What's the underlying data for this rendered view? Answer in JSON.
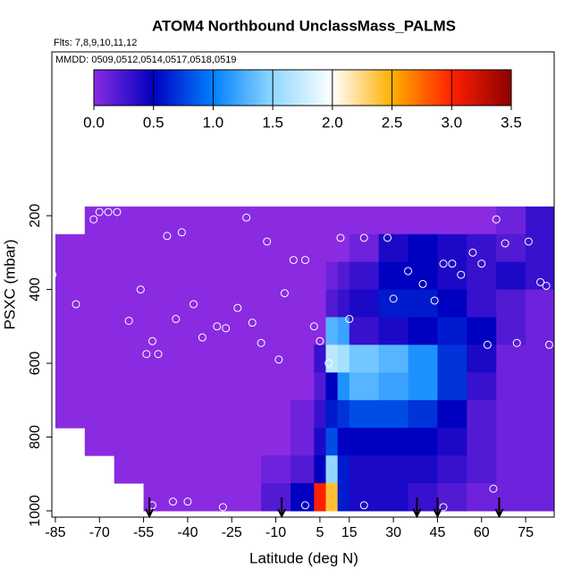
{
  "chart_data": {
    "type": "curtain",
    "title": "ATOM4 Northbound UnclassMass_PALMS",
    "subtitle": "Flts: 7,8,9,10,11,12",
    "annotation": "MMDD: 0509,0512,0514,0517,0518,0519",
    "xlabel": "Latitude (deg N)",
    "ylabel": "PSXC (mbar)",
    "xlim": [
      -86.2,
      84.7
    ],
    "ylim": [
      1017,
      -244
    ],
    "xticks": [
      -85,
      -70,
      -55,
      -40,
      -25,
      -10,
      5,
      15,
      30,
      45,
      60,
      75
    ],
    "yticks": [
      200,
      400,
      600,
      800,
      1000
    ],
    "lat_edges": [
      -85,
      -75,
      -65,
      -55,
      -45,
      -35,
      -25,
      -15,
      -5,
      3,
      7,
      11,
      15,
      25,
      35,
      45,
      55,
      65,
      75,
      85
    ],
    "pressure_edges": [
      175,
      250,
      325,
      400,
      475,
      550,
      625,
      700,
      775,
      850,
      925,
      1000
    ],
    "values": [
      [
        null,
        0,
        0,
        0,
        0,
        0,
        0,
        0,
        0,
        0,
        0,
        0,
        0,
        0,
        0,
        0,
        0,
        0.1,
        0.3
      ],
      [
        0,
        0,
        0,
        0,
        0,
        0,
        0,
        0,
        0,
        0,
        0,
        0,
        0.1,
        0.4,
        0.5,
        0.4,
        0.3,
        0.2,
        0.3
      ],
      [
        0,
        0,
        0,
        0,
        0,
        0,
        0,
        0,
        0,
        0,
        0.1,
        0.2,
        0.3,
        0.5,
        0.5,
        0.4,
        0.3,
        0.4,
        0.3
      ],
      [
        0,
        0,
        0,
        0,
        0,
        0,
        0,
        0,
        0,
        0,
        0.2,
        0.3,
        0.4,
        0.6,
        0.6,
        0.5,
        0.3,
        0.2,
        0.1
      ],
      [
        0,
        0,
        0,
        0,
        0,
        0,
        0,
        0,
        0,
        0,
        1.3,
        1.2,
        0.3,
        0.4,
        0.5,
        0.6,
        0.5,
        0.2,
        0.1
      ],
      [
        0,
        0,
        0,
        0,
        0,
        0,
        0,
        0,
        0,
        0.3,
        1.7,
        1.6,
        1.4,
        1.3,
        1.1,
        0.7,
        0.4,
        0.1,
        0.1
      ],
      [
        0,
        0,
        0,
        0,
        0,
        0,
        0,
        0,
        0,
        0.2,
        0.5,
        1.1,
        1.3,
        1.2,
        1.1,
        0.7,
        0.3,
        0.1,
        0.1
      ],
      [
        0,
        0,
        0,
        0,
        0,
        0,
        0,
        0,
        0.1,
        0.3,
        0.6,
        0.7,
        0.8,
        0.8,
        0.7,
        0.5,
        0.2,
        0.1,
        0.1
      ],
      [
        null,
        0,
        0,
        0,
        0,
        0,
        0,
        0,
        0.1,
        0.4,
        0.8,
        0.5,
        0.5,
        0.5,
        0.5,
        0.4,
        0.2,
        0.1,
        0.1
      ],
      [
        null,
        null,
        0,
        0,
        0,
        0,
        0,
        0.1,
        0.2,
        0.5,
        1.5,
        0.6,
        0.4,
        0.4,
        0.4,
        0.3,
        0.2,
        0.1,
        0.1
      ],
      [
        null,
        null,
        null,
        0,
        0,
        0,
        0,
        0.2,
        0.5,
        3.0,
        2.4,
        0.6,
        0.4,
        0.4,
        0.3,
        0.2,
        0.1,
        0.1,
        0.1
      ]
    ],
    "colorbar": {
      "clim": [
        0,
        3.5
      ],
      "ticks": [
        {
          "value": 0,
          "label": "0.0"
        },
        0.5,
        {
          "value": 1,
          "label": "1.0"
        },
        1.5,
        {
          "value": 2,
          "label": "2.0"
        },
        2.5,
        {
          "value": 3,
          "label": "3.0"
        },
        3.5
      ],
      "colors": [
        "#8a2be2",
        "#0000c0",
        "#0080ff",
        "#90d8ff",
        "#ffffff",
        "#ffb000",
        "#ff2000",
        "#8b0000"
      ]
    },
    "samples": {
      "x": [
        -86,
        -82,
        -78,
        -72,
        -70,
        -67,
        -64,
        -60,
        -56,
        -54,
        -52,
        -50,
        -47,
        -44,
        -42,
        -38,
        -35,
        -30,
        -27,
        -23,
        -20,
        -18,
        -15,
        -13,
        -9,
        -7,
        -4,
        0,
        3,
        5,
        8,
        12,
        15,
        20,
        28,
        30,
        35,
        40,
        44,
        47,
        50,
        53,
        57,
        60,
        62,
        65,
        68,
        72,
        76,
        80,
        82,
        83,
        -52,
        -45,
        -40,
        -28,
        0,
        20,
        47,
        64
      ],
      "y": [
        360,
        210,
        440,
        210,
        190,
        190,
        190,
        485,
        400,
        575,
        540,
        575,
        255,
        480,
        245,
        440,
        530,
        500,
        505,
        450,
        205,
        490,
        545,
        270,
        590,
        410,
        320,
        320,
        500,
        540,
        600,
        260,
        480,
        260,
        260,
        425,
        350,
        385,
        430,
        330,
        330,
        360,
        300,
        330,
        550,
        210,
        275,
        545,
        270,
        380,
        390,
        550,
        985,
        975,
        975,
        990,
        985,
        985,
        990,
        940
      ],
      "color": "#ffffff"
    },
    "arrows": [
      -53,
      -8,
      38,
      45,
      66
    ]
  }
}
